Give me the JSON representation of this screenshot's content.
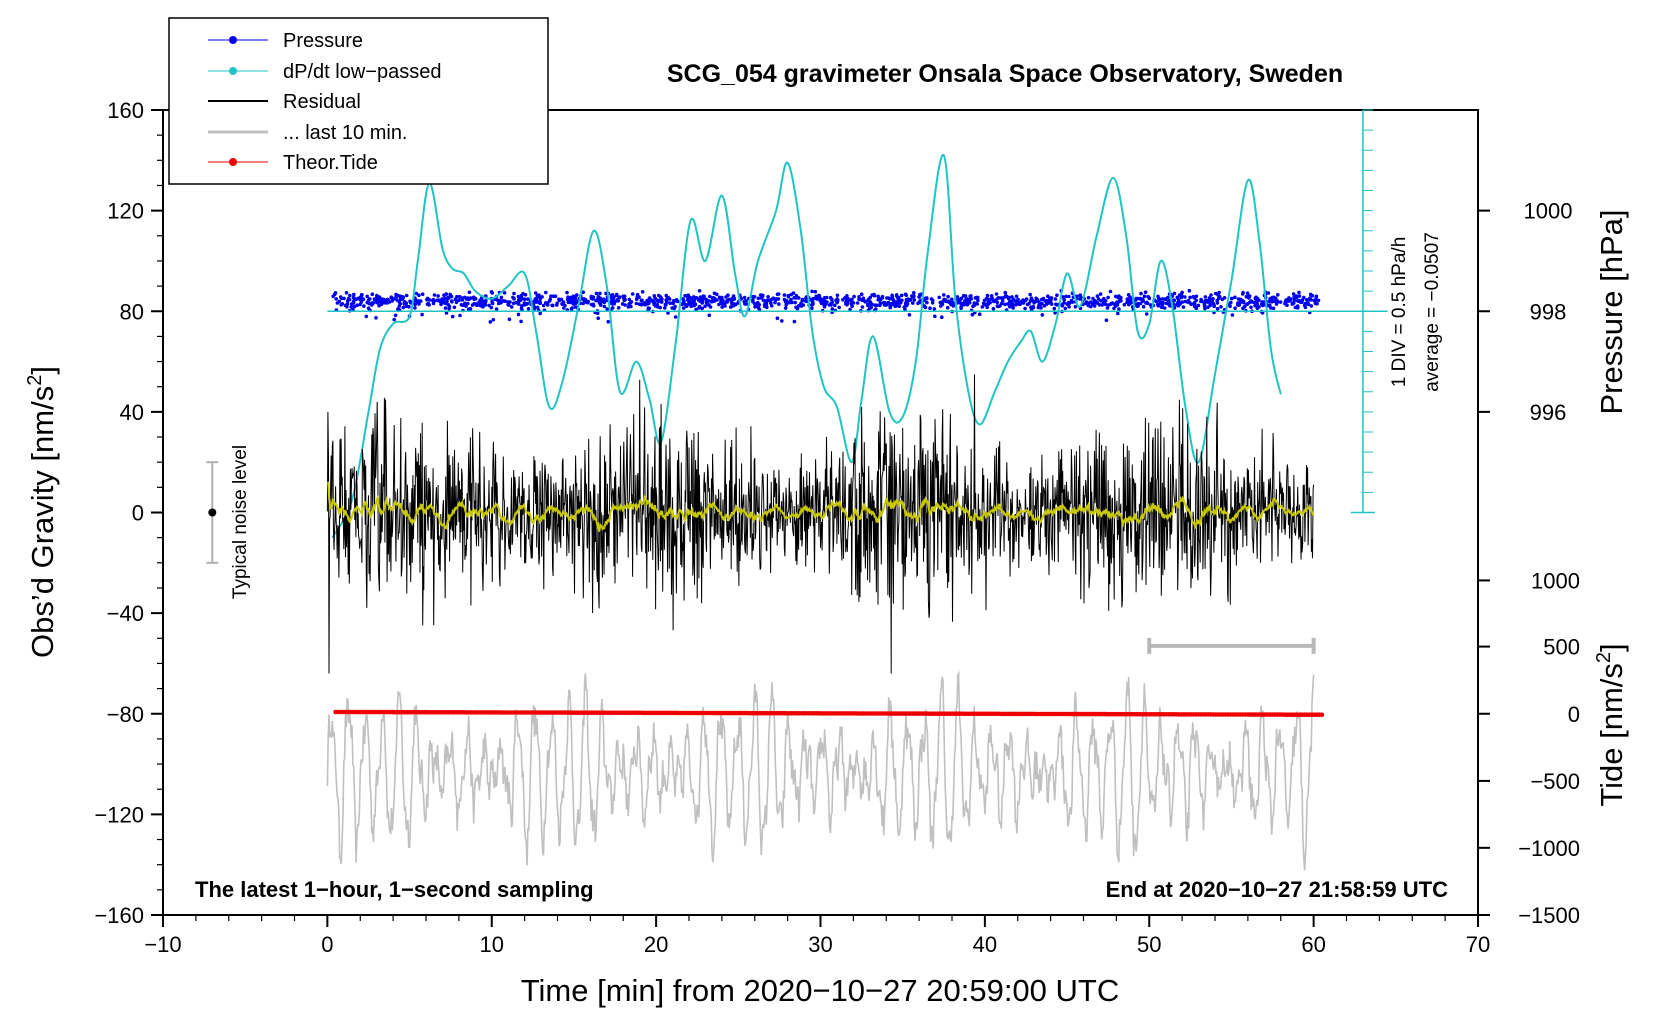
{
  "chart_data": {
    "type": "line",
    "title": "SCG_054 gravimeter Onsala Space Observatory, Sweden",
    "xlabel": "Time [min] from 2020−10−27 20:59:00 UTC",
    "ylabel_left": "Obs’d Gravity [nm/s²]",
    "ylabel_left_main": "Obs’d Gravity [nm/s",
    "ylabel_left_sup": "2",
    "ylabel_left_end": "]",
    "ylabel_pressure": "Pressure [hPa]",
    "ylabel_tide_main": "Tide [nm/s",
    "ylabel_tide_sup": "2",
    "ylabel_tide_end": "]",
    "xlim": [
      -10,
      70
    ],
    "ylim_left": [
      -160,
      160
    ],
    "x_ticks": [
      "−10",
      "0",
      "10",
      "20",
      "30",
      "40",
      "50",
      "60",
      "70"
    ],
    "x_tick_values": [
      -10,
      0,
      10,
      20,
      30,
      40,
      50,
      60,
      70
    ],
    "y_ticks": [
      "160",
      "120",
      "80",
      "40",
      "0",
      "−40",
      "−80",
      "−120",
      "−160"
    ],
    "y_tick_values": [
      160,
      120,
      80,
      40,
      0,
      -40,
      -80,
      -120,
      -160
    ],
    "pressure_axis": {
      "ticks": [
        "1000",
        "998",
        "996"
      ],
      "tick_values": [
        1000,
        998,
        996
      ],
      "gravity_equiv": [
        120,
        80,
        40
      ],
      "hpa_per_40nms": 2
    },
    "tide_axis": {
      "ticks": [
        "1000",
        "500",
        "0",
        "−500",
        "−1000",
        "−1500"
      ],
      "tick_values": [
        1000,
        500,
        0,
        -500,
        -1000,
        -1500
      ],
      "gravity_equiv": [
        -27,
        -53.3,
        -80,
        -106.7,
        -133.3,
        -160
      ]
    },
    "legend": [
      {
        "label": "Pressure",
        "color": "#0000ee",
        "marker": true
      },
      {
        "label": "dP/dt low−passed",
        "color": "#20c4c4",
        "marker": true
      },
      {
        "label": "Residual",
        "color": "#000000",
        "marker": false
      },
      {
        "label": "... last 10 min.",
        "color": "#c0c0c0",
        "marker": false
      },
      {
        "label": "Theor.Tide",
        "color": "#ee0000",
        "marker": true
      }
    ],
    "annotations": {
      "bottom_left": "The latest 1−hour, 1−second sampling",
      "bottom_right": "End at 2020−10−27 21:58:59 UTC",
      "noise_label": "Typical noise level",
      "noise_level": {
        "x": -7,
        "center": 0,
        "low": -20,
        "high": 20
      },
      "div_label": "1 DIV = 0.5 hPa/h",
      "average_label": "average = −0.0507",
      "window_bar": {
        "x_start": 50,
        "x_end": 60,
        "y": -53
      }
    },
    "series": [
      {
        "name": "Pressure",
        "color": "#0000ee",
        "style": "dots",
        "y_scale": "gravity-equivalent",
        "level": 84,
        "spread": 1.5,
        "x_range": [
          0.3,
          60.3
        ]
      },
      {
        "name": "dP/dt low−passed",
        "color": "#20c4c4",
        "style": "line",
        "reference_level": 80,
        "x": [
          0.3,
          1.5,
          2.5,
          3.2,
          4,
          5,
          5.5,
          6.2,
          7,
          7.6,
          8.3,
          9,
          10,
          11,
          12,
          12.7,
          13.5,
          14.3,
          15.3,
          16.2,
          17,
          17.8,
          18.8,
          19.6,
          20.3,
          21.2,
          22.1,
          23,
          24,
          24.8,
          25.4,
          26.2,
          27.3,
          28,
          28.8,
          29.5,
          30.2,
          31,
          31.9,
          32.5,
          33.2,
          34.2,
          35,
          35.8,
          36.5,
          37.5,
          38.2,
          39,
          39.7,
          40.6,
          41.4,
          42.2,
          42.8,
          43.5,
          44.3,
          45,
          45.8,
          46.8,
          47.8,
          48.6,
          49.3,
          50,
          50.7,
          51.4,
          52.2,
          53,
          54,
          55,
          56,
          56.7,
          57.4,
          58
        ],
        "values": [
          -10,
          5,
          40,
          65,
          75,
          78,
          100,
          131,
          105,
          97,
          95,
          88,
          85,
          90,
          95,
          72,
          42,
          52,
          83,
          112,
          90,
          48,
          60,
          45,
          28,
          68,
          116,
          100,
          126,
          95,
          78,
          100,
          120,
          139,
          112,
          72,
          50,
          42,
          20,
          45,
          70,
          40,
          38,
          60,
          102,
          142,
          85,
          48,
          35,
          48,
          60,
          68,
          72,
          60,
          75,
          95,
          82,
          110,
          133,
          110,
          72,
          75,
          100,
          82,
          42,
          20,
          55,
          92,
          132,
          108,
          65,
          47
        ]
      },
      {
        "name": "Residual",
        "color": "#000000",
        "style": "line",
        "amplitude": 16,
        "x_range": [
          0,
          60
        ]
      },
      {
        "name": "Residual smoothed",
        "color": "#c8c800",
        "style": "line",
        "amplitude": 2,
        "x_range": [
          0,
          60
        ]
      },
      {
        "name": "... last 10 min.",
        "color": "#c0c0c0",
        "style": "line",
        "center": -103,
        "amplitude": 26,
        "x_range": [
          0,
          60
        ]
      },
      {
        "name": "Theor.Tide",
        "color": "#ee0000",
        "style": "dots",
        "x": [
          0.5,
          60.5
        ],
        "values": [
          -79.3,
          -80.4
        ]
      }
    ]
  }
}
